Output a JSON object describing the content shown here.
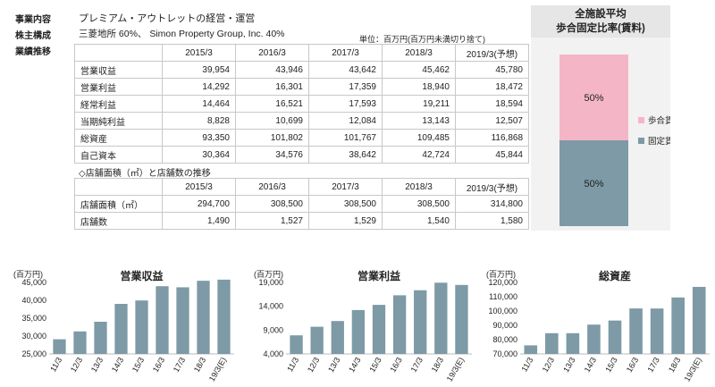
{
  "company": {
    "business_label": "事業内容",
    "business_value": "プレミアム・アウトレットの経営・運営",
    "shareholders_label": "株主構成",
    "shareholders_value": "三菱地所 60%、 Simon Property Group, Inc. 40%",
    "performance_label": "業績推移",
    "unit_note": "単位：百万円(百万円未満切り捨て)"
  },
  "perf_table": {
    "headers": [
      "",
      "2015/3",
      "2016/3",
      "2017/3",
      "2018/3",
      "2019/3(予想)"
    ],
    "rows": [
      {
        "label": "営業収益",
        "values": [
          "39,954",
          "43,946",
          "43,642",
          "45,462",
          "45,780"
        ]
      },
      {
        "label": "営業利益",
        "values": [
          "14,292",
          "16,301",
          "17,359",
          "18,940",
          "18,472"
        ]
      },
      {
        "label": "経常利益",
        "values": [
          "14,464",
          "16,521",
          "17,593",
          "19,211",
          "18,594"
        ]
      },
      {
        "label": "当期純利益",
        "values": [
          "8,828",
          "10,699",
          "12,084",
          "13,143",
          "12,507"
        ]
      },
      {
        "label": "総資産",
        "values": [
          "93,350",
          "101,802",
          "101,767",
          "109,485",
          "116,868"
        ]
      },
      {
        "label": "自己資本",
        "values": [
          "30,364",
          "34,576",
          "38,642",
          "42,724",
          "45,844"
        ]
      }
    ]
  },
  "store_section_title": "◇店舗面積（㎡）と店舗数の推移",
  "store_table": {
    "headers": [
      "",
      "2015/3",
      "2016/3",
      "2017/3",
      "2018/3",
      "2019/3(予想)"
    ],
    "rows": [
      {
        "label": "店舗面積（㎡）",
        "values": [
          "294,700",
          "308,500",
          "308,500",
          "308,500",
          "314,800"
        ]
      },
      {
        "label": "店舗数",
        "values": [
          "1,490",
          "1,527",
          "1,529",
          "1,540",
          "1,580"
        ]
      }
    ]
  },
  "ratio_panel": {
    "title_line1": "全施設平均",
    "title_line2": "歩合固定比率(賃料)",
    "colors": {
      "commission": "#f4b6c6",
      "fixed": "#7d9aa6"
    },
    "legend_commission": "歩合賃料",
    "legend_fixed": "固定賃料"
  },
  "chart_data": [
    {
      "type": "stacked-bar",
      "title": "",
      "categories": [
        ""
      ],
      "series": [
        {
          "name": "歩合賃料",
          "values": [
            50
          ],
          "label": "50%",
          "color": "#f4b6c6"
        },
        {
          "name": "固定賃料",
          "values": [
            50
          ],
          "label": "50%",
          "color": "#7d9aa6"
        }
      ],
      "legend": "right"
    },
    {
      "type": "bar",
      "title": "営業収益",
      "unit": "(百万円)",
      "categories": [
        "11/3",
        "12/3",
        "13/3",
        "14/3",
        "15/3",
        "16/3",
        "17/3",
        "18/3",
        "19/3(E)"
      ],
      "values": [
        29100,
        31300,
        34000,
        39000,
        39954,
        43946,
        43642,
        45462,
        45780
      ],
      "ylim": [
        25000,
        45000
      ],
      "yticks": [
        "25,000",
        "30,000",
        "35,000",
        "40,000",
        "45,000"
      ],
      "tickvals": [
        25000,
        30000,
        35000,
        40000,
        45000
      ],
      "color": "#7d9aa6"
    },
    {
      "type": "bar",
      "title": "営業利益",
      "unit": "(百万円)",
      "categories": [
        "11/3",
        "12/3",
        "13/3",
        "14/3",
        "15/3",
        "16/3",
        "17/3",
        "18/3",
        "19/3(E)"
      ],
      "values": [
        7900,
        9700,
        10900,
        13200,
        14292,
        16301,
        17359,
        18940,
        18472
      ],
      "ylim": [
        4000,
        19000
      ],
      "yticks": [
        "4,000",
        "9,000",
        "14,000",
        "19,000"
      ],
      "tickvals": [
        4000,
        9000,
        14000,
        19000
      ],
      "color": "#7d9aa6"
    },
    {
      "type": "bar",
      "title": "総資産",
      "unit": "(百万円)",
      "categories": [
        "11/3",
        "12/3",
        "13/3",
        "14/3",
        "15/3",
        "16/3",
        "17/3",
        "18/3",
        "19/3(E)"
      ],
      "values": [
        76000,
        84500,
        84500,
        90500,
        93350,
        101802,
        101767,
        109485,
        116868
      ],
      "ylim": [
        70000,
        120000
      ],
      "yticks": [
        "70,000",
        "80,000",
        "90,000",
        "100,000",
        "110,000",
        "120,000"
      ],
      "tickvals": [
        70000,
        80000,
        90000,
        100000,
        110000,
        120000
      ],
      "color": "#7d9aa6"
    }
  ]
}
